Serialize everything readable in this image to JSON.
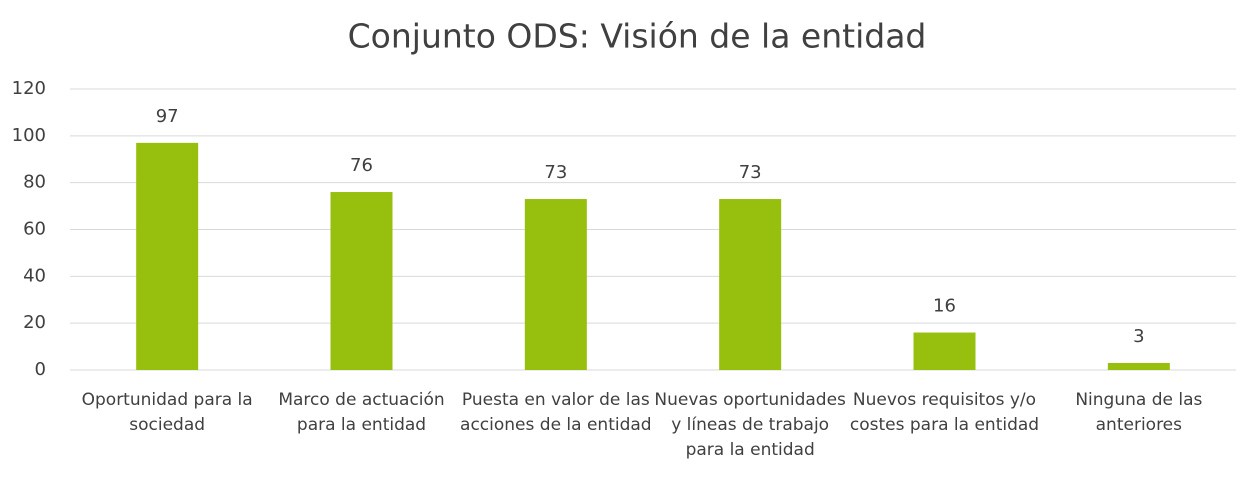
{
  "chart_data": {
    "type": "bar",
    "title": "Conjunto ODS: Visión de la entidad",
    "categories": [
      "Oportunidad para la sociedad",
      "Marco de actuación para la entidad",
      "Puesta en valor de las acciones de la entidad",
      "Nuevas oportunidades y líneas de trabajo para la entidad",
      "Nuevos requisitos y/o costes para la entidad",
      "Ninguna de las anteriores"
    ],
    "values": [
      97,
      76,
      73,
      73,
      16,
      3
    ],
    "color": "#97bf0d",
    "ylim": [
      0,
      120
    ],
    "yticks": [
      0,
      20,
      40,
      60,
      80,
      100,
      120
    ],
    "grid": true
  }
}
